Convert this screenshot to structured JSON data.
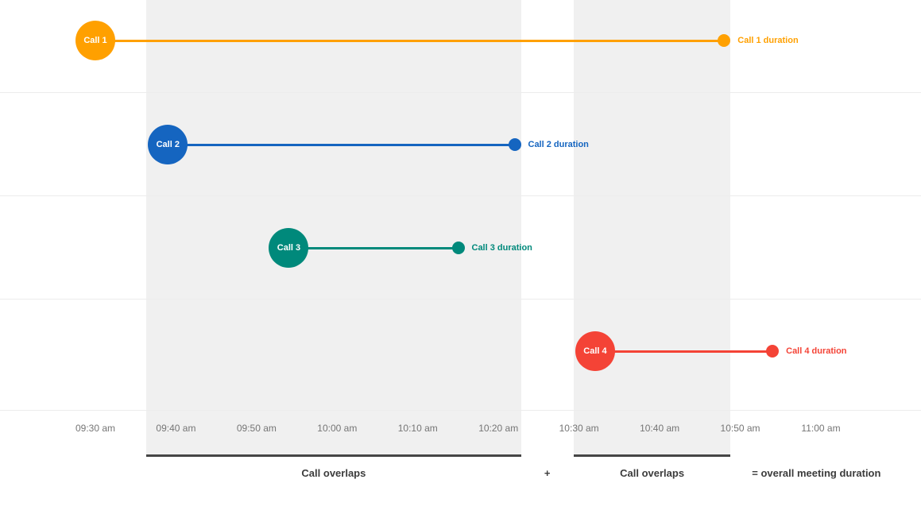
{
  "chart_data": {
    "type": "timeline",
    "title": "",
    "x_axis": {
      "start": "09:30",
      "end": "11:00",
      "ticks": [
        {
          "label": "09:30 am",
          "t": "09:30"
        },
        {
          "label": "09:40 am",
          "t": "09:40"
        },
        {
          "label": "09:50 am",
          "t": "09:50"
        },
        {
          "label": "10:00 am",
          "t": "10:00"
        },
        {
          "label": "10:10 am",
          "t": "10:10"
        },
        {
          "label": "10:20 am",
          "t": "10:20"
        },
        {
          "label": "10:30 am",
          "t": "10:30"
        },
        {
          "label": "10:40 am",
          "t": "10:40"
        },
        {
          "label": "10:50 am",
          "t": "10:50"
        },
        {
          "label": "11:00 am",
          "t": "11:00"
        }
      ]
    },
    "calls": [
      {
        "name": "Call 1",
        "duration_label": "Call 1 duration",
        "color": "#FFA000",
        "start": "09:30",
        "end": "10:48"
      },
      {
        "name": "Call 2",
        "duration_label": "Call 2 duration",
        "color": "#1565C0",
        "start": "09:39",
        "end": "10:22"
      },
      {
        "name": "Call 3",
        "duration_label": "Call 3 duration",
        "color": "#00897B",
        "start": "09:54",
        "end": "10:15"
      },
      {
        "name": "Call 4",
        "duration_label": "Call 4 duration",
        "color": "#F44336",
        "start": "10:32",
        "end": "10:54"
      }
    ],
    "overlaps": [
      {
        "label": "Call overlaps",
        "start": "09:39",
        "end": "10:22"
      },
      {
        "label": "Call overlaps",
        "start": "10:32",
        "end": "10:48"
      }
    ],
    "annotations": {
      "plus": "+",
      "result": "= overall meeting duration"
    },
    "layout_hints": {
      "grid": "horizontal-light",
      "legend": "none",
      "band_color": "#f0f0f0"
    }
  }
}
